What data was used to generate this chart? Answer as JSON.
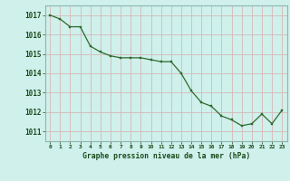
{
  "x": [
    0,
    1,
    2,
    3,
    4,
    5,
    6,
    7,
    8,
    9,
    10,
    11,
    12,
    13,
    14,
    15,
    16,
    17,
    18,
    19,
    20,
    21,
    22,
    23
  ],
  "y": [
    1017.0,
    1016.8,
    1016.4,
    1016.4,
    1015.4,
    1015.1,
    1014.9,
    1014.8,
    1014.8,
    1014.8,
    1014.7,
    1014.6,
    1014.6,
    1014.0,
    1013.1,
    1012.5,
    1012.3,
    1011.8,
    1011.6,
    1011.3,
    1011.4,
    1011.9,
    1011.4,
    1012.1
  ],
  "line_color": "#2d6a2d",
  "marker_color": "#2d6a2d",
  "bg_color": "#cff0eb",
  "grid_color_major": "#b8d8d4",
  "grid_color_minor": "#d0e8e4",
  "xlabel": "Graphe pression niveau de la mer (hPa)",
  "xlabel_color": "#1a4a1a",
  "tick_label_color": "#1a4a1a",
  "ylim_min": 1010.5,
  "ylim_max": 1017.5,
  "ytick_values": [
    1011,
    1012,
    1013,
    1014,
    1015,
    1016,
    1017
  ],
  "xtick_values": [
    0,
    1,
    2,
    3,
    4,
    5,
    6,
    7,
    8,
    9,
    10,
    11,
    12,
    13,
    14,
    15,
    16,
    17,
    18,
    19,
    20,
    21,
    22,
    23
  ]
}
